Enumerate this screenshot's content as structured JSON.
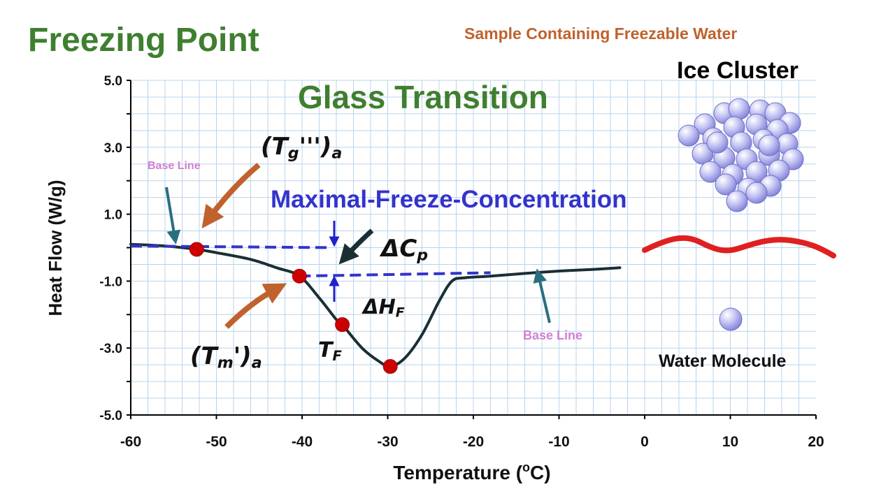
{
  "chart_data": {
    "type": "line",
    "title": "Freezing Point",
    "subtitle": "Sample Containing Freezable Water",
    "xlabel": "Temperature (oC)",
    "xlabel_main": "Temperature (",
    "xlabel_sup": "o",
    "xlabel_end": "C)",
    "ylabel": "Heat Flow (W/g)",
    "xlim": [
      -60,
      20
    ],
    "ylim": [
      -5,
      5
    ],
    "grid": true,
    "x_ticks": [
      "-60",
      "-50",
      "-40",
      "-30",
      "-20",
      "-10",
      "0",
      "10",
      "20"
    ],
    "x_tick_values": [
      -60,
      -50,
      -40,
      -30,
      -20,
      -10,
      0,
      10,
      20
    ],
    "y_ticks": [
      "5.0",
      "3.0",
      "1.0",
      "-1.0",
      "-3.0",
      "-5.0"
    ],
    "y_tick_values": [
      5,
      3,
      1,
      -1,
      -3,
      -5
    ],
    "series": [
      {
        "x": [
          -60,
          -56,
          -52.3,
          -50,
          -46,
          -43,
          -40.3,
          -38,
          -36,
          -35.3,
          -33,
          -31,
          -29.7,
          -28,
          -26,
          -24,
          -22.5,
          -21,
          -18,
          -14,
          -10,
          -6,
          -2.9
        ],
        "y": [
          0.1,
          0.05,
          -0.05,
          -0.15,
          -0.35,
          -0.6,
          -0.85,
          -1.5,
          -2.15,
          -2.3,
          -3.0,
          -3.4,
          -3.55,
          -3.3,
          -2.6,
          -1.6,
          -1.0,
          -0.9,
          -0.85,
          -0.77,
          -0.7,
          -0.65,
          -0.6
        ]
      }
    ],
    "baseline_upper": {
      "x": [
        -60,
        -36.5
      ],
      "y": [
        0.05,
        0.0
      ]
    },
    "baseline_lower": {
      "x": [
        -40.3,
        -18
      ],
      "y": [
        -0.85,
        -0.75
      ]
    },
    "points": [
      {
        "x": -52.3,
        "y": -0.05
      },
      {
        "x": -40.3,
        "y": -0.85
      },
      {
        "x": -35.3,
        "y": -2.3
      },
      {
        "x": -29.7,
        "y": -3.55
      }
    ],
    "annotations": {
      "glass_transition": "Glass Transition",
      "maximal_freeze": "Maximal-Freeze-Concentration",
      "baseline_upper": "Base Line",
      "baseline_lower": "Base Line",
      "ice_cluster": "Ice Cluster",
      "water_molecule": "Water Molecule",
      "tg_main": "(T",
      "tg_sub": "g",
      "tg_prime": "''')",
      "tg_end": "a",
      "tm_main": "(T",
      "tm_sub": "m",
      "tm_prime": "')",
      "tm_end": "a",
      "tf_main": "T",
      "tf_sub": "F",
      "dcp_main": "ΔC",
      "dcp_sub": "p",
      "dhf_main": "ΔH",
      "dhf_sub": "F"
    },
    "colors": {
      "title": "#3f7f2f",
      "subtitle": "#c0622d",
      "curve": "#1a2f33",
      "points": "#cc0000",
      "dashed": "#3333cc",
      "grid": "#b8d4ec",
      "orange_arrow": "#c0622d",
      "teal_arrow": "#2a6f7f",
      "baseline_label": "#d080d0",
      "wave": "#e02020",
      "sphere": "#9a9ae6"
    }
  }
}
